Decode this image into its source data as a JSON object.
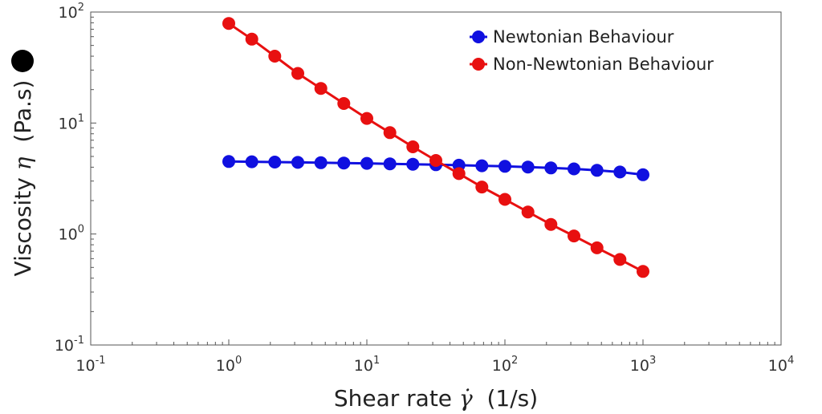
{
  "chart_data": {
    "type": "line",
    "xscale": "log",
    "yscale": "log",
    "xlim": [
      0.1,
      10000
    ],
    "ylim": [
      0.1,
      100
    ],
    "x_ticks": [
      {
        "base": "10",
        "exp": "-1"
      },
      {
        "base": "10",
        "exp": "0"
      },
      {
        "base": "10",
        "exp": "1"
      },
      {
        "base": "10",
        "exp": "2"
      },
      {
        "base": "10",
        "exp": "3"
      },
      {
        "base": "10",
        "exp": "4"
      }
    ],
    "y_ticks": [
      {
        "base": "10",
        "exp": "-1"
      },
      {
        "base": "10",
        "exp": "0"
      },
      {
        "base": "10",
        "exp": "1"
      },
      {
        "base": "10",
        "exp": "2"
      }
    ],
    "xlabel": {
      "pre": "Shear rate ",
      "symbol": "γ̇",
      "post": "  (1/s)"
    },
    "ylabel": {
      "pre": "Viscosity ",
      "symbol": "η",
      "post": "  (Pa.s)"
    },
    "x": [
      1,
      1.468,
      2.154,
      3.162,
      4.642,
      6.813,
      10,
      14.68,
      21.54,
      31.62,
      46.42,
      68.13,
      100,
      146.8,
      215.4,
      316.2,
      464.2,
      681.3,
      1000
    ],
    "series": [
      {
        "name": "Newtonian Behaviour",
        "color": "#1010e0",
        "values": [
          4.5,
          4.48,
          4.45,
          4.42,
          4.39,
          4.36,
          4.33,
          4.29,
          4.25,
          4.21,
          4.17,
          4.12,
          4.07,
          4.01,
          3.94,
          3.86,
          3.75,
          3.62,
          3.42
        ]
      },
      {
        "name": "Non-Newtonian Behaviour",
        "color": "#e81010",
        "values": [
          79,
          57,
          40,
          28,
          20.5,
          15,
          11,
          8.2,
          6.1,
          4.6,
          3.5,
          2.65,
          2.05,
          1.58,
          1.22,
          0.96,
          0.75,
          0.59,
          0.46
        ]
      }
    ],
    "legend_position": "top-right",
    "grid": false
  }
}
